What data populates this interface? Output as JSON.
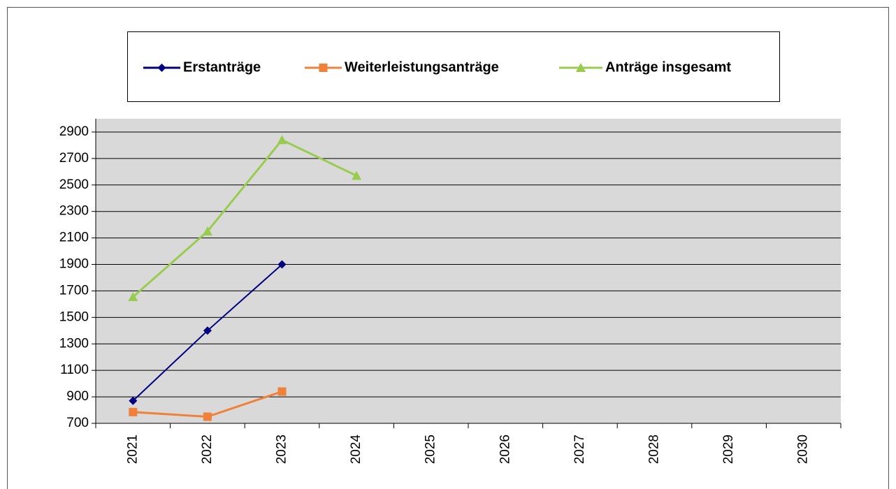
{
  "chart_data": {
    "type": "line",
    "categories": [
      "2021",
      "2022",
      "2023",
      "2024",
      "2025",
      "2026",
      "2027",
      "2028",
      "2029",
      "2030"
    ],
    "series": [
      {
        "name": "Erstanträge",
        "color": "#000080",
        "marker": "diamond",
        "values": [
          870,
          1400,
          1900,
          null,
          null,
          null,
          null,
          null,
          null,
          null
        ]
      },
      {
        "name": "Weiterleistungsanträge",
        "color": "#f0813a",
        "marker": "square",
        "values": [
          785,
          750,
          940,
          null,
          null,
          null,
          null,
          null,
          null,
          null
        ]
      },
      {
        "name": "Anträge insgesamt",
        "color": "#99cc4e",
        "marker": "triangle",
        "values": [
          1655,
          2150,
          2840,
          2570,
          null,
          null,
          null,
          null,
          null,
          null
        ]
      }
    ],
    "ylim": [
      700,
      3000
    ],
    "yticks": [
      700,
      900,
      1100,
      1300,
      1500,
      1700,
      1900,
      2100,
      2300,
      2500,
      2700,
      2900
    ],
    "grid": true,
    "plot_background": "#d9d9d9",
    "legend": "top"
  }
}
